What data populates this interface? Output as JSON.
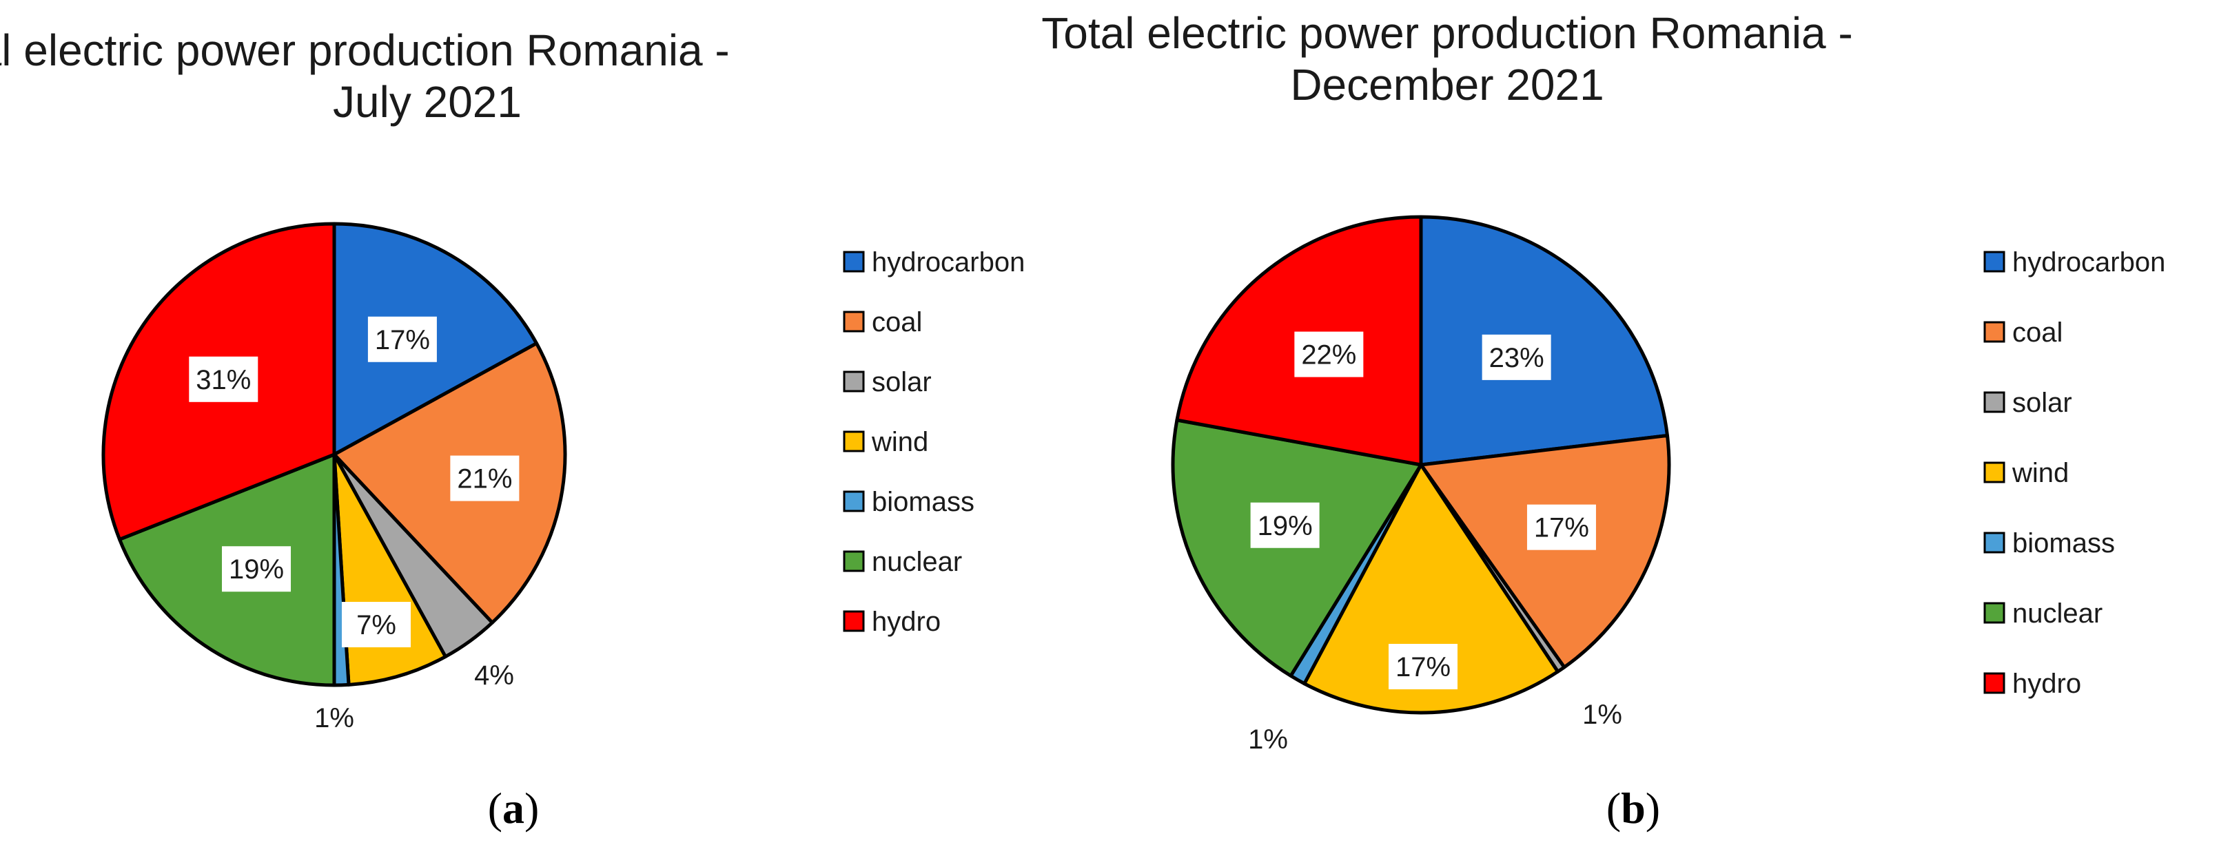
{
  "figure_labels": [
    "(a)",
    "(b)"
  ],
  "chart_data": [
    {
      "type": "pie",
      "title_lines": [
        "Total electric power production Romania -",
        "July 2021"
      ],
      "categories": [
        "hydrocarbon",
        "coal",
        "solar",
        "wind",
        "biomass",
        "nuclear",
        "hydro"
      ],
      "values": [
        17,
        21,
        4,
        7,
        1,
        19,
        31
      ],
      "labels": [
        "17%",
        "21%",
        "4%",
        "7%",
        "1%",
        "19%",
        "31%"
      ],
      "colors": [
        "#1f6fcf",
        "#f6823b",
        "#a6a6a6",
        "#ffc000",
        "#4a9fd8",
        "#54a43a",
        "#ff0000"
      ],
      "legend": "right",
      "start_angle": 0,
      "direction": "clockwise"
    },
    {
      "type": "pie",
      "title_lines": [
        "Total electric power production Romania -",
        "December 2021"
      ],
      "categories": [
        "hydrocarbon",
        "coal",
        "solar",
        "wind",
        "biomass",
        "nuclear",
        "hydro"
      ],
      "values": [
        23,
        17,
        0.5,
        17,
        1,
        19,
        22
      ],
      "labels": [
        "23%",
        "17%",
        "",
        "17%",
        "1%",
        "19%",
        "22%"
      ],
      "extra_labels": [
        "1%"
      ],
      "colors": [
        "#1f6fcf",
        "#f6823b",
        "#a6a6a6",
        "#ffc000",
        "#4a9fd8",
        "#54a43a",
        "#ff0000"
      ],
      "legend": "right",
      "start_angle": 0,
      "direction": "clockwise"
    }
  ]
}
